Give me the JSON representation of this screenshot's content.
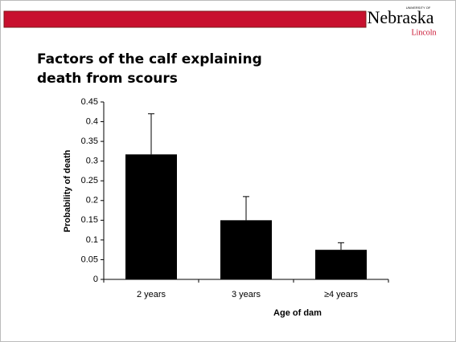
{
  "logo": {
    "top": "UNIVERSITY OF",
    "name": "Nebraska",
    "sub": "Lincoln"
  },
  "chart_data": {
    "type": "bar",
    "title": "Factors of the calf explaining death from scours",
    "categories": [
      "2 years",
      "3 years",
      "≥4 years"
    ],
    "values": [
      0.317,
      0.15,
      0.075
    ],
    "errors": [
      0.103,
      0.06,
      0.018
    ],
    "color": "#000000",
    "xlabel": "Age of dam",
    "ylabel": "Probability of death",
    "ylim": [
      0,
      0.45
    ],
    "yticks": [
      0,
      0.05,
      0.1,
      0.15,
      0.2,
      0.25,
      0.3,
      0.35,
      0.4,
      0.45
    ]
  }
}
